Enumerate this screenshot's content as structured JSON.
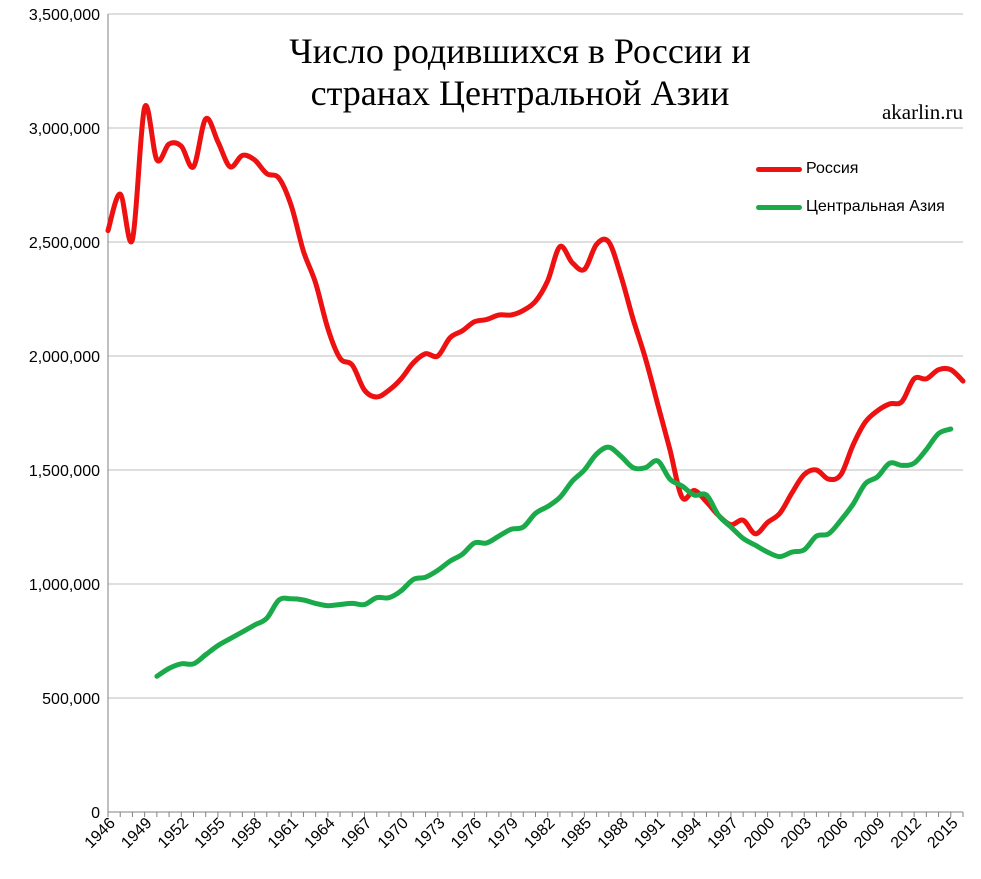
{
  "header": {
    "title_line1": "Число родившихся в России и",
    "title_line2": "странах Центральной Азии",
    "credit": "akarlin.ru"
  },
  "colors": {
    "russia": "#ee1111",
    "central_asia": "#1aaa4a",
    "grid": "#bfbfbf",
    "axis": "#808080"
  },
  "chart_data": {
    "type": "line",
    "title": "Число родившихся в России и странах Центральной Азии",
    "ylim": [
      0,
      3500000
    ],
    "yticks": [
      0,
      500000,
      1000000,
      1500000,
      2000000,
      2500000,
      3000000,
      3500000
    ],
    "ytick_labels": [
      "0",
      "500,000",
      "1,000,000",
      "1,500,000",
      "2,000,000",
      "2,500,000",
      "3,000,000",
      "3,500,000"
    ],
    "xlim": [
      1946,
      2016
    ],
    "xtick_labels": [
      "1946",
      "1949",
      "1952",
      "1955",
      "1958",
      "1961",
      "1964",
      "1967",
      "1970",
      "1973",
      "1976",
      "1979",
      "1982",
      "1985",
      "1988",
      "1991",
      "1994",
      "1997",
      "2000",
      "2003",
      "2006",
      "2009",
      "2012",
      "2015"
    ],
    "grid": true,
    "legend_position": "top-right",
    "series": [
      {
        "name": "Россия",
        "x": [
          1946,
          1947,
          1948,
          1949,
          1950,
          1951,
          1952,
          1953,
          1954,
          1955,
          1956,
          1957,
          1958,
          1959,
          1960,
          1961,
          1962,
          1963,
          1964,
          1965,
          1966,
          1967,
          1968,
          1969,
          1970,
          1971,
          1972,
          1973,
          1974,
          1975,
          1976,
          1977,
          1978,
          1979,
          1980,
          1981,
          1982,
          1983,
          1984,
          1985,
          1986,
          1987,
          1988,
          1989,
          1990,
          1991,
          1992,
          1993,
          1994,
          1995,
          1996,
          1997,
          1998,
          1999,
          2000,
          2001,
          2002,
          2003,
          2004,
          2005,
          2006,
          2007,
          2008,
          2009,
          2010,
          2011,
          2012,
          2013,
          2014,
          2015,
          2016
        ],
        "values": [
          2550000,
          2710000,
          2510000,
          3090000,
          2860000,
          2930000,
          2920000,
          2830000,
          3040000,
          2940000,
          2830000,
          2880000,
          2860000,
          2800000,
          2780000,
          2660000,
          2460000,
          2320000,
          2120000,
          1990000,
          1960000,
          1850000,
          1820000,
          1850000,
          1900000,
          1970000,
          2010000,
          2000000,
          2080000,
          2110000,
          2150000,
          2160000,
          2180000,
          2180000,
          2200000,
          2240000,
          2330000,
          2480000,
          2410000,
          2380000,
          2490000,
          2500000,
          2350000,
          2160000,
          1990000,
          1790000,
          1590000,
          1380000,
          1410000,
          1360000,
          1300000,
          1260000,
          1280000,
          1220000,
          1270000,
          1310000,
          1400000,
          1480000,
          1500000,
          1460000,
          1480000,
          1610000,
          1710000,
          1760000,
          1790000,
          1800000,
          1900000,
          1900000,
          1940000,
          1940000,
          1890000
        ]
      },
      {
        "name": "Центральная Азия",
        "x": [
          1950,
          1951,
          1952,
          1953,
          1954,
          1955,
          1956,
          1957,
          1958,
          1959,
          1960,
          1961,
          1962,
          1963,
          1964,
          1965,
          1966,
          1967,
          1968,
          1969,
          1970,
          1971,
          1972,
          1973,
          1974,
          1975,
          1976,
          1977,
          1978,
          1979,
          1980,
          1981,
          1982,
          1983,
          1984,
          1985,
          1986,
          1987,
          1988,
          1989,
          1990,
          1991,
          1992,
          1993,
          1994,
          1995,
          1996,
          1997,
          1998,
          1999,
          2000,
          2001,
          2002,
          2003,
          2004,
          2005,
          2006,
          2007,
          2008,
          2009,
          2010,
          2011,
          2012,
          2013,
          2014,
          2015
        ],
        "values": [
          595000,
          630000,
          650000,
          650000,
          690000,
          730000,
          760000,
          790000,
          820000,
          850000,
          930000,
          935000,
          930000,
          915000,
          905000,
          910000,
          915000,
          910000,
          940000,
          940000,
          970000,
          1020000,
          1030000,
          1060000,
          1100000,
          1130000,
          1180000,
          1180000,
          1210000,
          1240000,
          1250000,
          1310000,
          1340000,
          1380000,
          1450000,
          1500000,
          1570000,
          1600000,
          1560000,
          1510000,
          1510000,
          1540000,
          1460000,
          1430000,
          1390000,
          1390000,
          1300000,
          1250000,
          1200000,
          1170000,
          1140000,
          1120000,
          1140000,
          1150000,
          1210000,
          1220000,
          1280000,
          1350000,
          1440000,
          1470000,
          1530000,
          1520000,
          1530000,
          1590000,
          1660000,
          1680000
        ]
      }
    ]
  }
}
